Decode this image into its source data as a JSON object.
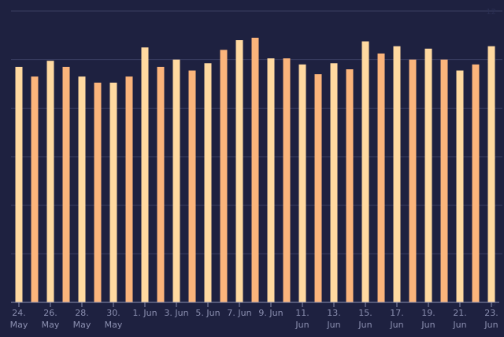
{
  "colors": {
    "background": "#1e2140",
    "gridline": "#3a3e62",
    "axis": "#8b8fb0",
    "bar_light": "#ffd9a0",
    "bar_dark": "#fbb47b"
  },
  "chart_data": {
    "type": "bar",
    "title": "",
    "xlabel": "",
    "ylabel": "",
    "ylim": [
      0,
      12
    ],
    "yticks": [
      0,
      2,
      4,
      6,
      8,
      10,
      12
    ],
    "grid": true,
    "legend": "none",
    "categories": [
      "24 May",
      "25 May",
      "26 May",
      "27 May",
      "28 May",
      "29 May",
      "30 May",
      "31 May",
      "1 Jun",
      "2 Jun",
      "3 Jun",
      "4 Jun",
      "5 Jun",
      "6 Jun",
      "7 Jun",
      "8 Jun",
      "9 Jun",
      "10 Jun",
      "11 Jun",
      "12 Jun",
      "13 Jun",
      "14 Jun",
      "15 Jun",
      "16 Jun",
      "17 Jun",
      "18 Jun",
      "19 Jun",
      "20 Jun",
      "21 Jun",
      "22 Jun",
      "23 Jun"
    ],
    "values": [
      9.7,
      9.3,
      9.95,
      9.7,
      9.3,
      9.05,
      9.05,
      9.3,
      10.5,
      9.7,
      10.0,
      9.55,
      9.85,
      10.4,
      10.8,
      10.9,
      10.05,
      10.05,
      9.8,
      9.4,
      9.85,
      9.6,
      10.75,
      10.25,
      10.55,
      10.0,
      10.45,
      10.0,
      9.55,
      9.8,
      10.55
    ],
    "x_tick_labels": [
      {
        "index": 0,
        "line1": "24.",
        "line2": "May"
      },
      {
        "index": 2,
        "line1": "26.",
        "line2": "May"
      },
      {
        "index": 4,
        "line1": "28.",
        "line2": "May"
      },
      {
        "index": 6,
        "line1": "30.",
        "line2": "May"
      },
      {
        "index": 8,
        "line1": "1. Jun",
        "line2": ""
      },
      {
        "index": 10,
        "line1": "3. Jun",
        "line2": ""
      },
      {
        "index": 12,
        "line1": "5. Jun",
        "line2": ""
      },
      {
        "index": 14,
        "line1": "7. Jun",
        "line2": ""
      },
      {
        "index": 16,
        "line1": "9. Jun",
        "line2": ""
      },
      {
        "index": 18,
        "line1": "11.",
        "line2": "Jun"
      },
      {
        "index": 20,
        "line1": "13.",
        "line2": "Jun"
      },
      {
        "index": 22,
        "line1": "15.",
        "line2": "Jun"
      },
      {
        "index": 24,
        "line1": "17.",
        "line2": "Jun"
      },
      {
        "index": 26,
        "line1": "19.",
        "line2": "Jun"
      },
      {
        "index": 28,
        "line1": "21.",
        "line2": "Jun"
      },
      {
        "index": 30,
        "line1": "23.",
        "line2": "Jun"
      }
    ]
  }
}
